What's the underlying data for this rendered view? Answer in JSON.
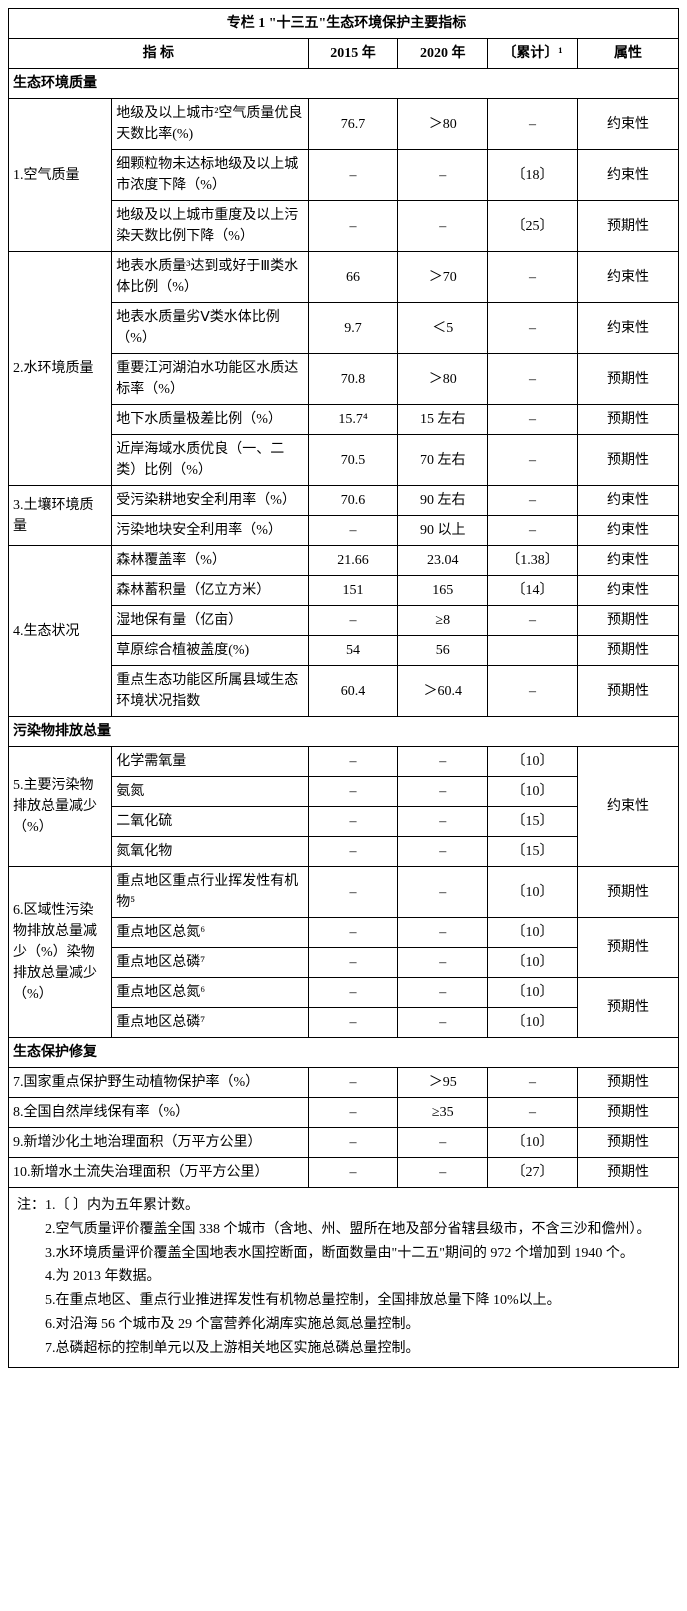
{
  "title": "专栏 1  \"十三五\"生态环境保护主要指标",
  "headers": {
    "indicator": "指   标",
    "y2015": "2015 年",
    "y2020": "2020 年",
    "cum": "〔累计〕¹",
    "attr": "属性"
  },
  "sections": {
    "s1": "生态环境质量",
    "s2": "污染物排放总量",
    "s3": "生态保护修复"
  },
  "cat": {
    "air": "1.空气质量",
    "water": "2.水环境质量",
    "soil": "3.土壤环境质量",
    "eco": "4.生态状况",
    "emit": "5.主要污染物排放总量减少（%）",
    "region": "6.区域性污染物排放总量减少（%）染物排放总量减少（%）"
  },
  "rows": {
    "r1": {
      "ind": "地级及以上城市²空气质量优良天数比率(%)",
      "y15": "76.7",
      "y20": "＞80",
      "cum": "–",
      "attr": "约束性"
    },
    "r2": {
      "ind": "细颗粒物未达标地级及以上城市浓度下降（%）",
      "y15": "–",
      "y20": "–",
      "cum": "〔18〕",
      "attr": "约束性"
    },
    "r3": {
      "ind": "地级及以上城市重度及以上污染天数比例下降（%）",
      "y15": "–",
      "y20": "–",
      "cum": "〔25〕",
      "attr": "预期性"
    },
    "r4": {
      "ind": "地表水质量³达到或好于Ⅲ类水体比例（%）",
      "y15": "66",
      "y20": "＞70",
      "cum": "–",
      "attr": "约束性"
    },
    "r5": {
      "ind": "地表水质量劣Ⅴ类水体比例（%）",
      "y15": "9.7",
      "y20": "＜5",
      "cum": "–",
      "attr": "约束性"
    },
    "r6": {
      "ind": "重要江河湖泊水功能区水质达标率（%）",
      "y15": "70.8",
      "y20": "＞80",
      "cum": "–",
      "attr": "预期性"
    },
    "r7": {
      "ind": "地下水质量极差比例（%）",
      "y15": "15.7⁴",
      "y20": "15 左右",
      "cum": "–",
      "attr": "预期性"
    },
    "r8": {
      "ind": "近岸海域水质优良（一、二类）比例（%）",
      "y15": "70.5",
      "y20": "70 左右",
      "cum": "–",
      "attr": "预期性"
    },
    "r9": {
      "ind": "受污染耕地安全利用率（%）",
      "y15": "70.6",
      "y20": "90 左右",
      "cum": "–",
      "attr": "约束性"
    },
    "r10": {
      "ind": "污染地块安全利用率（%）",
      "y15": "–",
      "y20": "90 以上",
      "cum": "–",
      "attr": "约束性"
    },
    "r11": {
      "ind": "森林覆盖率（%）",
      "y15": "21.66",
      "y20": "23.04",
      "cum": "〔1.38〕",
      "attr": "约束性"
    },
    "r12": {
      "ind": "森林蓄积量（亿立方米）",
      "y15": "151",
      "y20": "165",
      "cum": "〔14〕",
      "attr": "约束性"
    },
    "r13": {
      "ind": "湿地保有量（亿亩）",
      "y15": "–",
      "y20": "≥8",
      "cum": "–",
      "attr": "预期性"
    },
    "r14": {
      "ind": "草原综合植被盖度(%)",
      "y15": "54",
      "y20": "56",
      "cum": "",
      "attr": "预期性"
    },
    "r15": {
      "ind": "重点生态功能区所属县域生态环境状况指数",
      "y15": "60.4",
      "y20": "＞60.4",
      "cum": "–",
      "attr": "预期性"
    },
    "r16": {
      "ind": "化学需氧量",
      "y15": "–",
      "y20": "–",
      "cum": "〔10〕"
    },
    "r17": {
      "ind": "氨氮",
      "y15": "–",
      "y20": "–",
      "cum": "〔10〕"
    },
    "r18": {
      "ind": "二氧化硫",
      "y15": "–",
      "y20": "–",
      "cum": "〔15〕"
    },
    "r19": {
      "ind": "氮氧化物",
      "y15": "–",
      "y20": "–",
      "cum": "〔15〕"
    },
    "emit_attr": "约束性",
    "r20": {
      "ind": "重点地区重点行业挥发性有机物⁵",
      "y15": "–",
      "y20": "–",
      "cum": "〔10〕",
      "attr": "预期性"
    },
    "r21": {
      "ind": "重点地区总氮⁶",
      "y15": "–",
      "y20": "–",
      "cum": "〔10〕"
    },
    "r21b": {
      "ind": "重点地区总磷⁷",
      "y15": "–",
      "y20": "–",
      "cum": "〔10〕"
    },
    "r21_attr": "预期性",
    "r22": {
      "ind": "重点地区总氮⁶",
      "y15": "–",
      "y20": "–",
      "cum": "〔10〕"
    },
    "r23": {
      "ind": "重点地区总磷⁷",
      "y15": "–",
      "y20": "–",
      "cum": "〔10〕"
    },
    "r23_attr": "预期性",
    "r24": {
      "ind": "7.国家重点保护野生动植物保护率（%）",
      "y15": "–",
      "y20": "＞95",
      "cum": "–",
      "attr": "预期性"
    },
    "r25": {
      "ind": "8.全国自然岸线保有率（%）",
      "y15": "–",
      "y20": "≥35",
      "cum": "–",
      "attr": "预期性"
    },
    "r26": {
      "ind": "9.新增沙化土地治理面积（万平方公里）",
      "y15": "–",
      "y20": "–",
      "cum": "〔10〕",
      "attr": "预期性"
    },
    "r27": {
      "ind": "10.新增水土流失治理面积（万平方公里）",
      "y15": "–",
      "y20": "–",
      "cum": "〔27〕",
      "attr": "预期性"
    }
  },
  "notes": {
    "n0": "注：1.〔 〕内为五年累计数。",
    "n1": "2.空气质量评价覆盖全国 338 个城市（含地、州、盟所在地及部分省辖县级市，不含三沙和儋州）。",
    "n2": "3.水环境质量评价覆盖全国地表水国控断面，断面数量由\"十二五\"期间的 972 个增加到 1940 个。",
    "n3": "4.为 2013 年数据。",
    "n4": "5.在重点地区、重点行业推进挥发性有机物总量控制，全国排放总量下降 10%以上。",
    "n5": "6.对沿海 56 个城市及 29 个富营养化湖库实施总氮总量控制。",
    "n6": "7.总磷超标的控制单元以及上游相关地区实施总磷总量控制。"
  }
}
